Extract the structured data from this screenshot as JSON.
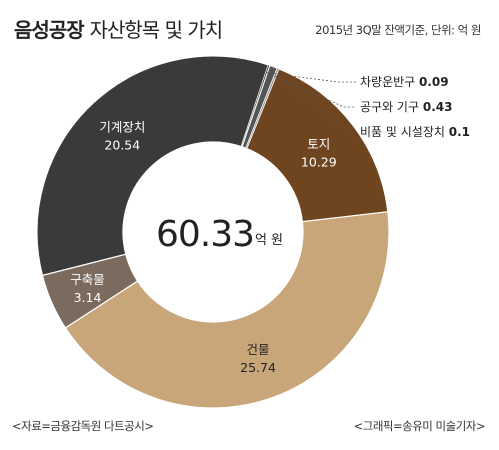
{
  "header": {
    "title_bold": "음성공장",
    "title_rest": "자산항목 및 가치",
    "unit_note": "2015년 3Q말 잔액기준, 단위: 억 원"
  },
  "footer": {
    "source": "<자료=금융감독원 다트공시>",
    "credit": "<그래픽=송유미 미술기자>"
  },
  "chart_data": {
    "type": "pie",
    "title": "",
    "donut": true,
    "total": {
      "value": "60.33",
      "unit": "억 원"
    },
    "slices": [
      {
        "label": "토지",
        "value": 10.29,
        "value_label": "10.29",
        "color": "#6f4520",
        "text_color": "#ffffff"
      },
      {
        "label": "건물",
        "value": 25.74,
        "value_label": "25.74",
        "color": "#c9a67a",
        "text_color": "#222222"
      },
      {
        "label": "구축물",
        "value": 3.14,
        "value_label": "3.14",
        "color": "#7b6b5f",
        "text_color": "#ffffff"
      },
      {
        "label": "기계장치",
        "value": 20.54,
        "value_label": "20.54",
        "color": "#3a3a3a",
        "text_color": "#ffffff"
      },
      {
        "label": "차량운반구",
        "value": 0.09,
        "value_label": "0.09",
        "color": "#222222",
        "text_color": "#222222"
      },
      {
        "label": "공구와 기구",
        "value": 0.43,
        "value_label": "0.43",
        "color": "#555555",
        "text_color": "#222222"
      },
      {
        "label": "비품 및 시설장치",
        "value": 0.1,
        "value_label": "0.1",
        "color": "#9a9a9a",
        "text_color": "#222222"
      }
    ]
  }
}
